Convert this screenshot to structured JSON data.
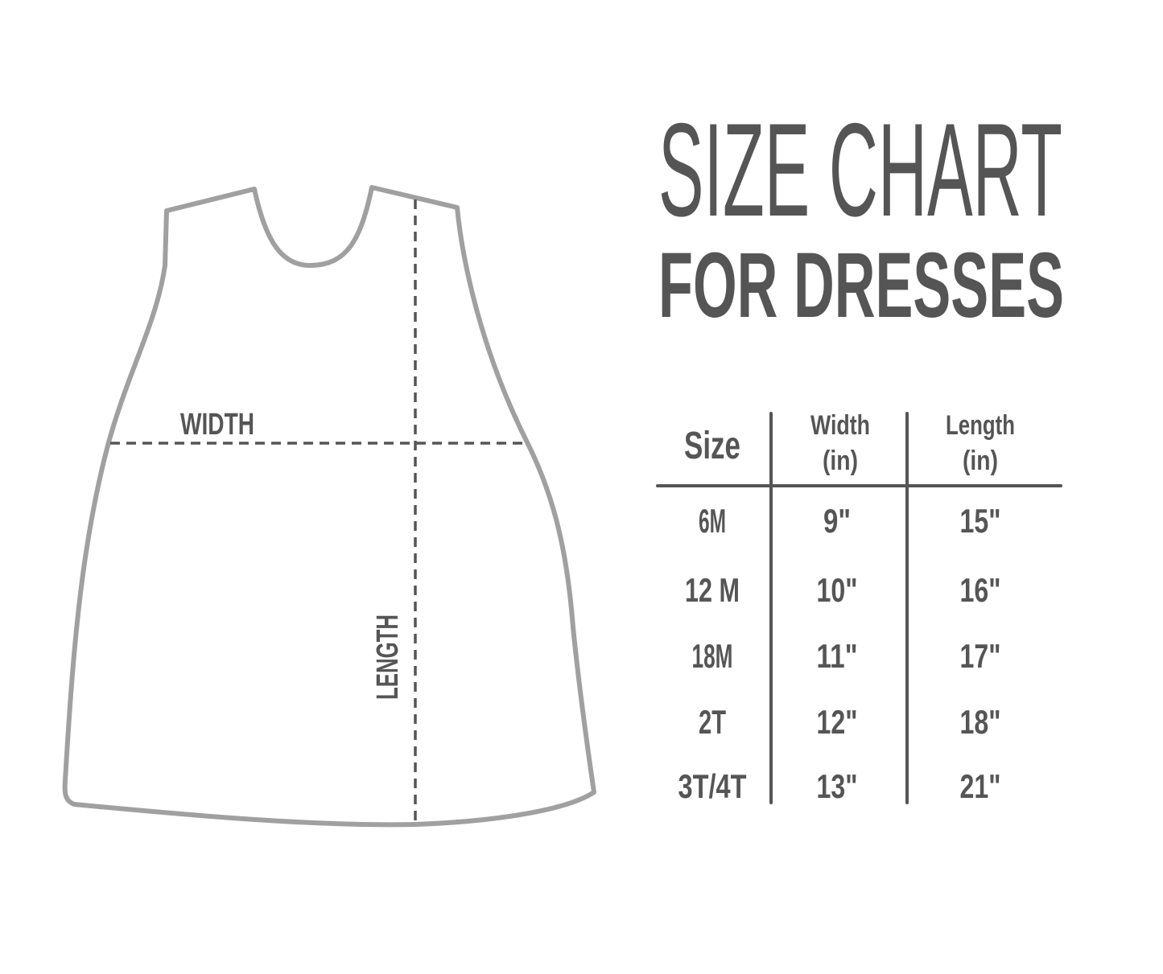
{
  "title": {
    "line1": "SIZE CHART",
    "line2": "FOR DRESSES"
  },
  "diagram": {
    "width_label": "WIDTH",
    "length_label": "LENGTH"
  },
  "table": {
    "headers": {
      "size": "Size",
      "width": {
        "line1": "Width",
        "line2": "(in)"
      },
      "length": {
        "line1": "Length",
        "line2": "(in)"
      }
    },
    "rows": [
      {
        "size": "6M",
        "width": "9\"",
        "length": "15\""
      },
      {
        "size": "12 M",
        "width": "10\"",
        "length": "16\""
      },
      {
        "size": "18M",
        "width": "11\"",
        "length": "17\""
      },
      {
        "size": "2T",
        "width": "12\"",
        "length": "18\""
      },
      {
        "size": "3T/4T",
        "width": "13\"",
        "length": "21\""
      }
    ]
  },
  "colors": {
    "text": "#555555",
    "outline": "#a0a0a0",
    "dash": "#555555",
    "background": "#ffffff"
  }
}
